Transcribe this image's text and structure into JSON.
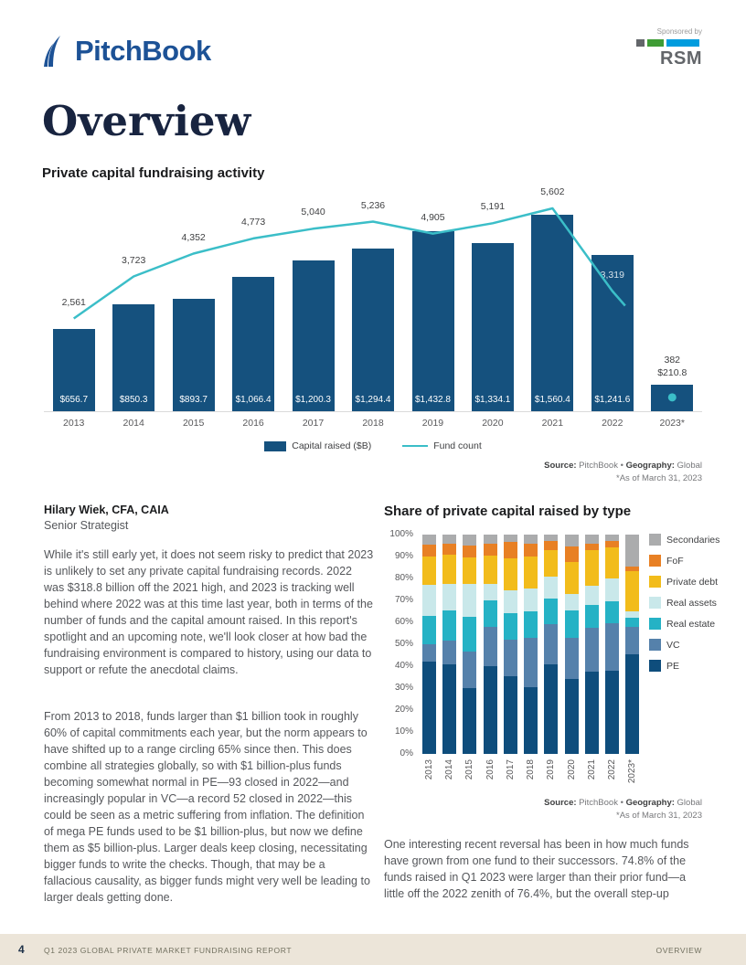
{
  "header": {
    "brand": "PitchBook",
    "sponsored_by": "Sponsored by",
    "sponsor": "RSM"
  },
  "page": {
    "title": "Overview"
  },
  "author": {
    "name": "Hilary Wiek, CFA, CAIA",
    "role": "Senior Strategist"
  },
  "article": {
    "paragraphs": [
      "While it's still early yet, it does not seem risky to predict that 2023 is unlikely to set any private capital fundraising records. 2022 was $318.8 billion off the 2021 high, and 2023 is tracking well behind where 2022 was at this time last year, both in terms of the number of funds and the capital amount raised. In this report's spotlight and an upcoming note, we'll look closer at how bad the fundraising environment is compared to history, using our data to support or refute the anecdotal claims.",
      "From 2013 to 2018, funds larger than $1 billion took in roughly 60% of capital commitments each year, but the norm appears to have shifted up to a range circling 65% since then. This does combine all strategies globally, so with $1 billion-plus funds becoming somewhat normal in PE—93 closed in 2022—and increasingly popular in VC—a record 52 closed in 2022—this could be seen as a metric suffering from inflation. The definition of mega PE funds used to be $1 billion-plus, but now we define them as $5 billion-plus. Larger deals keep closing, necessitating bigger funds to write the checks. Though, that may be a fallacious causality, as bigger funds might very well be leading to larger deals getting done."
    ]
  },
  "right_column": {
    "paragraph": "One interesting recent reversal has been in how much funds have grown from one fund to their successors. 74.8% of the funds raised in Q1 2023 were larger than their prior fund—a little off the 2022 zenith of 76.4%, but the overall step-up"
  },
  "source_note": {
    "source_label": "Source:",
    "source_value": " PitchBook",
    "bullet": " • ",
    "geography_label": "Geography:",
    "geography_value": " Global",
    "footnote": "*As of March 31, 2023"
  },
  "footer": {
    "page_number": "4",
    "report_title": "Q1 2023 GLOBAL PRIVATE MARKET FUNDRAISING REPORT",
    "section": "OVERVIEW"
  },
  "chart_data": [
    {
      "type": "bar",
      "title": "Private capital fundraising activity",
      "categories": [
        "2013",
        "2014",
        "2015",
        "2016",
        "2017",
        "2018",
        "2019",
        "2020",
        "2021",
        "2022",
        "2023*"
      ],
      "series": [
        {
          "name": "Capital raised ($B)",
          "type": "bar",
          "color": "#15517E",
          "values": [
            656.7,
            850.3,
            893.7,
            1066.4,
            1200.3,
            1294.4,
            1432.8,
            1334.1,
            1560.4,
            1241.6,
            210.8
          ],
          "labels": [
            "$656.7",
            "$850.3",
            "$893.7",
            "$1,066.4",
            "$1,200.3",
            "$1,294.4",
            "$1,432.8",
            "$1,334.1",
            "$1,560.4",
            "$1,241.6",
            "$210.8"
          ]
        },
        {
          "name": "Fund count",
          "type": "line",
          "color": "#3BBEC8",
          "values": [
            2561,
            3723,
            4352,
            4773,
            5040,
            5236,
            4905,
            5191,
            5602,
            3319,
            382
          ],
          "labels": [
            "2,561",
            "3,723",
            "4,352",
            "4,773",
            "5,040",
            "5,236",
            "4,905",
            "5,191",
            "5,602",
            "3,319",
            "382"
          ]
        }
      ],
      "legend_position": "bottom",
      "grid": false
    },
    {
      "type": "bar",
      "stacked": true,
      "title": "Share of private capital raised by type",
      "categories": [
        "2013",
        "2014",
        "2015",
        "2016",
        "2017",
        "2018",
        "2019",
        "2020",
        "2021",
        "2022",
        "2023*"
      ],
      "ylim": [
        0,
        100
      ],
      "y_ticks": [
        "0%",
        "10%",
        "20%",
        "30%",
        "40%",
        "50%",
        "60%",
        "70%",
        "80%",
        "90%",
        "100%"
      ],
      "legend_position": "right",
      "grid": false,
      "series": [
        {
          "name": "PE",
          "color": "#0E4D7C",
          "values": [
            42,
            41,
            30,
            40,
            35.5,
            30.5,
            41,
            34,
            37.5,
            38,
            45.5
          ]
        },
        {
          "name": "VC",
          "color": "#5581AB",
          "values": [
            8,
            10.5,
            16.5,
            18,
            16.5,
            22.5,
            18,
            19,
            20,
            21.5,
            12.5
          ]
        },
        {
          "name": "Real estate",
          "color": "#25B2C5",
          "values": [
            13,
            14,
            16,
            12,
            12,
            12,
            12,
            12.5,
            10.5,
            10,
            4
          ]
        },
        {
          "name": "Real assets",
          "color": "#C9E8EA",
          "values": [
            14,
            12,
            15,
            7.5,
            10.5,
            10.5,
            10,
            7.5,
            8.5,
            10.5,
            3
          ]
        },
        {
          "name": "Private debt",
          "color": "#F2BC1B",
          "values": [
            13,
            13.5,
            12,
            13,
            14.5,
            14.5,
            12,
            14.5,
            16.5,
            14,
            18.5
          ]
        },
        {
          "name": "FoF",
          "color": "#E88024",
          "values": [
            5.5,
            5,
            5.5,
            5.5,
            7.5,
            6,
            4,
            7,
            3,
            3,
            2
          ]
        },
        {
          "name": "Secondaries",
          "color": "#ABACAD",
          "values": [
            4.5,
            4,
            5,
            4,
            3.5,
            4,
            3,
            5.5,
            4,
            3,
            14.5
          ]
        }
      ]
    }
  ]
}
